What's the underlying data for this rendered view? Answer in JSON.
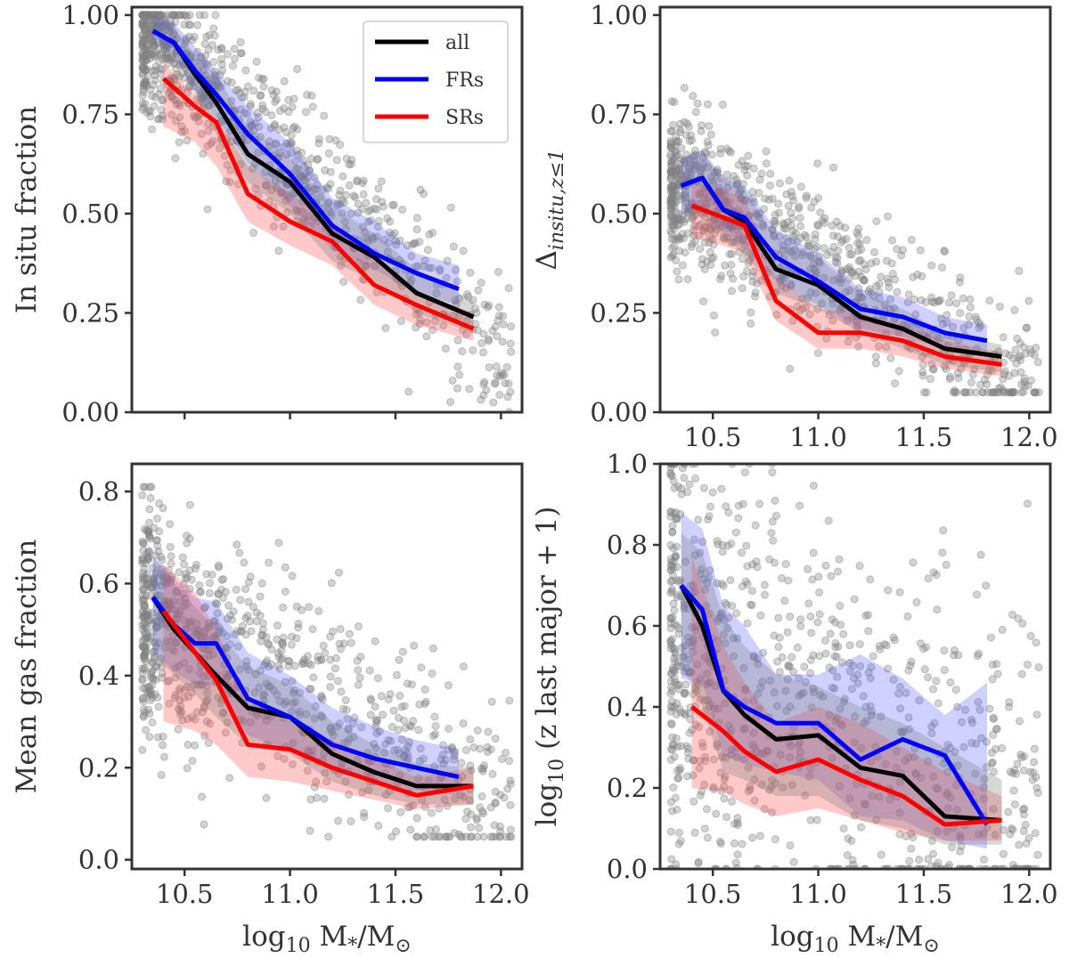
{
  "colors": {
    "all": "#000000",
    "FRs": "#0000ff",
    "SRs": "#ff0000",
    "scatter": "#808080",
    "axis": "#333333"
  },
  "chart_data": [
    {
      "type": "line",
      "panel": "top-left",
      "xlabel": "log10 M*/M⊙",
      "ylabel": "In situ fraction",
      "xlim": [
        10.25,
        12.1
      ],
      "ylim": [
        0.0,
        1.02
      ],
      "xticks": [
        10.5,
        11.0,
        11.5,
        12.0
      ],
      "xtick_labels": [
        "",
        "",
        "",
        ""
      ],
      "yticks": [
        0.0,
        0.25,
        0.5,
        0.75,
        1.0
      ],
      "ytick_labels": [
        "0.00",
        "0.25",
        "0.50",
        "0.75",
        "1.00"
      ],
      "legend": {
        "location": "upper-right",
        "entries": [
          "all",
          "FRs",
          "SRs"
        ]
      },
      "scatter_model": {
        "y0": 0.96,
        "slope": -0.47,
        "noise": 0.09,
        "ymin": 0.0,
        "ymax": 1.0
      },
      "series": [
        {
          "name": "all",
          "x": [
            10.35,
            10.45,
            10.55,
            10.65,
            10.8,
            11.0,
            11.2,
            11.4,
            11.6,
            11.87
          ],
          "values": [
            0.96,
            0.93,
            0.85,
            0.78,
            0.65,
            0.58,
            0.45,
            0.39,
            0.3,
            0.24
          ],
          "band": [
            [
              0.93,
              1.0
            ],
            [
              0.9,
              0.97
            ],
            [
              0.8,
              0.9
            ],
            [
              0.7,
              0.85
            ],
            [
              0.58,
              0.72
            ],
            [
              0.5,
              0.64
            ],
            [
              0.38,
              0.52
            ],
            [
              0.33,
              0.45
            ],
            [
              0.25,
              0.36
            ],
            [
              0.2,
              0.28
            ]
          ]
        },
        {
          "name": "FRs",
          "x": [
            10.35,
            10.45,
            10.55,
            10.65,
            10.8,
            11.0,
            11.2,
            11.4,
            11.6,
            11.8
          ],
          "values": [
            0.96,
            0.93,
            0.86,
            0.8,
            0.7,
            0.6,
            0.47,
            0.4,
            0.35,
            0.31
          ],
          "band": [
            [
              0.93,
              1.0
            ],
            [
              0.9,
              0.98
            ],
            [
              0.81,
              0.92
            ],
            [
              0.74,
              0.86
            ],
            [
              0.63,
              0.77
            ],
            [
              0.52,
              0.68
            ],
            [
              0.41,
              0.54
            ],
            [
              0.36,
              0.48
            ],
            [
              0.3,
              0.4
            ],
            [
              0.27,
              0.37
            ]
          ]
        },
        {
          "name": "SRs",
          "x": [
            10.4,
            10.55,
            10.65,
            10.8,
            11.0,
            11.2,
            11.4,
            11.6,
            11.87
          ],
          "values": [
            0.84,
            0.77,
            0.73,
            0.55,
            0.48,
            0.43,
            0.32,
            0.27,
            0.21
          ],
          "band": [
            [
              0.72,
              0.88
            ],
            [
              0.68,
              0.8
            ],
            [
              0.62,
              0.74
            ],
            [
              0.48,
              0.62
            ],
            [
              0.42,
              0.55
            ],
            [
              0.37,
              0.48
            ],
            [
              0.27,
              0.38
            ],
            [
              0.22,
              0.3
            ],
            [
              0.18,
              0.25
            ]
          ]
        }
      ]
    },
    {
      "type": "line",
      "panel": "top-right",
      "xlabel": "log10 M*/M⊙",
      "ylabel": "Δinsitu,z≤1",
      "xlim": [
        10.25,
        12.1
      ],
      "ylim": [
        0.0,
        1.02
      ],
      "xticks": [
        10.5,
        11.0,
        11.5,
        12.0
      ],
      "xtick_labels": [
        "10.5",
        "11.0",
        "11.5",
        "12.0"
      ],
      "yticks": [
        0.0,
        0.25,
        0.5,
        0.75,
        1.0
      ],
      "ytick_labels": [
        "0.00",
        "0.25",
        "0.50",
        "0.75",
        "1.00"
      ],
      "scatter_model": {
        "y0": 0.58,
        "slope": -0.3,
        "noise": 0.1,
        "ymin": 0.05,
        "ymax": 0.82
      },
      "series": [
        {
          "name": "all",
          "x": [
            10.35,
            10.45,
            10.55,
            10.65,
            10.8,
            11.0,
            11.2,
            11.4,
            11.6,
            11.87
          ],
          "values": [
            0.57,
            0.59,
            0.51,
            0.48,
            0.36,
            0.32,
            0.24,
            0.21,
            0.16,
            0.14
          ],
          "band": [
            [
              0.5,
              0.64
            ],
            [
              0.5,
              0.66
            ],
            [
              0.44,
              0.58
            ],
            [
              0.4,
              0.56
            ],
            [
              0.3,
              0.44
            ],
            [
              0.26,
              0.39
            ],
            [
              0.2,
              0.3
            ],
            [
              0.16,
              0.26
            ],
            [
              0.12,
              0.2
            ],
            [
              0.1,
              0.17
            ]
          ]
        },
        {
          "name": "FRs",
          "x": [
            10.35,
            10.45,
            10.55,
            10.65,
            10.8,
            11.0,
            11.2,
            11.4,
            11.6,
            11.8
          ],
          "values": [
            0.57,
            0.59,
            0.51,
            0.49,
            0.39,
            0.33,
            0.26,
            0.24,
            0.2,
            0.18
          ],
          "band": [
            [
              0.5,
              0.64
            ],
            [
              0.52,
              0.66
            ],
            [
              0.45,
              0.59
            ],
            [
              0.42,
              0.57
            ],
            [
              0.33,
              0.46
            ],
            [
              0.27,
              0.4
            ],
            [
              0.21,
              0.31
            ],
            [
              0.19,
              0.29
            ],
            [
              0.16,
              0.24
            ],
            [
              0.14,
              0.22
            ]
          ]
        },
        {
          "name": "SRs",
          "x": [
            10.4,
            10.55,
            10.65,
            10.8,
            11.0,
            11.2,
            11.4,
            11.6,
            11.87
          ],
          "values": [
            0.52,
            0.49,
            0.47,
            0.28,
            0.2,
            0.2,
            0.18,
            0.14,
            0.12
          ],
          "band": [
            [
              0.44,
              0.58
            ],
            [
              0.42,
              0.56
            ],
            [
              0.4,
              0.54
            ],
            [
              0.23,
              0.34
            ],
            [
              0.16,
              0.26
            ],
            [
              0.16,
              0.25
            ],
            [
              0.14,
              0.22
            ],
            [
              0.11,
              0.18
            ],
            [
              0.09,
              0.15
            ]
          ]
        }
      ]
    },
    {
      "type": "line",
      "panel": "bottom-left",
      "xlabel": "log10 M*/M⊙",
      "ylabel": "Mean gas fraction",
      "xlim": [
        10.25,
        12.1
      ],
      "ylim": [
        -0.02,
        0.86
      ],
      "xticks": [
        10.5,
        11.0,
        11.5,
        12.0
      ],
      "xtick_labels": [
        "10.5",
        "11.0",
        "11.5",
        "12.0"
      ],
      "yticks": [
        0.0,
        0.2,
        0.4,
        0.6,
        0.8
      ],
      "ytick_labels": [
        "0.0",
        "0.2",
        "0.4",
        "0.6",
        "0.8"
      ],
      "scatter_model": {
        "y0": 0.55,
        "slope": -0.26,
        "noise": 0.12,
        "ymin": 0.05,
        "ymax": 0.81
      },
      "series": [
        {
          "name": "all",
          "x": [
            10.35,
            10.45,
            10.55,
            10.65,
            10.8,
            11.0,
            11.2,
            11.4,
            11.6,
            11.87
          ],
          "values": [
            0.57,
            0.5,
            0.45,
            0.4,
            0.33,
            0.31,
            0.23,
            0.19,
            0.16,
            0.16
          ],
          "band": [
            [
              0.45,
              0.66
            ],
            [
              0.4,
              0.6
            ],
            [
              0.36,
              0.55
            ],
            [
              0.31,
              0.5
            ],
            [
              0.25,
              0.42
            ],
            [
              0.23,
              0.38
            ],
            [
              0.17,
              0.3
            ],
            [
              0.14,
              0.25
            ],
            [
              0.12,
              0.21
            ],
            [
              0.12,
              0.2
            ]
          ]
        },
        {
          "name": "FRs",
          "x": [
            10.35,
            10.45,
            10.55,
            10.65,
            10.8,
            11.0,
            11.2,
            11.4,
            11.6,
            11.8
          ],
          "values": [
            0.57,
            0.51,
            0.47,
            0.47,
            0.35,
            0.31,
            0.25,
            0.22,
            0.2,
            0.18
          ],
          "band": [
            [
              0.45,
              0.66
            ],
            [
              0.41,
              0.61
            ],
            [
              0.38,
              0.57
            ],
            [
              0.38,
              0.56
            ],
            [
              0.27,
              0.45
            ],
            [
              0.24,
              0.4
            ],
            [
              0.19,
              0.33
            ],
            [
              0.17,
              0.29
            ],
            [
              0.15,
              0.26
            ],
            [
              0.14,
              0.24
            ]
          ]
        },
        {
          "name": "SRs",
          "x": [
            10.4,
            10.55,
            10.65,
            10.8,
            11.0,
            11.2,
            11.4,
            11.6,
            11.87
          ],
          "values": [
            0.54,
            0.45,
            0.39,
            0.25,
            0.24,
            0.2,
            0.17,
            0.14,
            0.16
          ],
          "band": [
            [
              0.3,
              0.64
            ],
            [
              0.28,
              0.58
            ],
            [
              0.25,
              0.5
            ],
            [
              0.18,
              0.34
            ],
            [
              0.17,
              0.31
            ],
            [
              0.15,
              0.26
            ],
            [
              0.13,
              0.22
            ],
            [
              0.11,
              0.18
            ],
            [
              0.12,
              0.2
            ]
          ]
        }
      ]
    },
    {
      "type": "line",
      "panel": "bottom-right",
      "xlabel": "log10 M*/M⊙",
      "ylabel": "log10 (z last major + 1)",
      "xlim": [
        10.25,
        12.1
      ],
      "ylim": [
        0.0,
        1.0
      ],
      "xticks": [
        10.5,
        11.0,
        11.5,
        12.0
      ],
      "xtick_labels": [
        "10.5",
        "11.0",
        "11.5",
        "12.0"
      ],
      "yticks": [
        0.0,
        0.2,
        0.4,
        0.6,
        0.8,
        1.0
      ],
      "ytick_labels": [
        "0.0",
        "0.2",
        "0.4",
        "0.6",
        "0.8",
        "1.0"
      ],
      "scatter_model": {
        "y0": 0.55,
        "slope": -0.25,
        "noise": 0.25,
        "ymin": 0.0,
        "ymax": 1.0
      },
      "series": [
        {
          "name": "all",
          "x": [
            10.35,
            10.45,
            10.55,
            10.65,
            10.8,
            11.0,
            11.2,
            11.4,
            11.6,
            11.87
          ],
          "values": [
            0.7,
            0.6,
            0.44,
            0.38,
            0.32,
            0.33,
            0.25,
            0.23,
            0.13,
            0.12
          ],
          "band": [
            [
              0.5,
              0.83
            ],
            [
              0.4,
              0.78
            ],
            [
              0.24,
              0.62
            ],
            [
              0.22,
              0.55
            ],
            [
              0.18,
              0.48
            ],
            [
              0.18,
              0.45
            ],
            [
              0.12,
              0.4
            ],
            [
              0.1,
              0.36
            ],
            [
              0.06,
              0.3
            ],
            [
              0.06,
              0.22
            ]
          ]
        },
        {
          "name": "FRs",
          "x": [
            10.35,
            10.45,
            10.55,
            10.65,
            10.8,
            11.0,
            11.2,
            11.4,
            11.6,
            11.8
          ],
          "values": [
            0.7,
            0.64,
            0.44,
            0.4,
            0.36,
            0.36,
            0.27,
            0.32,
            0.28,
            0.11
          ],
          "band": [
            [
              0.47,
              0.88
            ],
            [
              0.46,
              0.84
            ],
            [
              0.28,
              0.65
            ],
            [
              0.26,
              0.6
            ],
            [
              0.24,
              0.48
            ],
            [
              0.22,
              0.48
            ],
            [
              0.13,
              0.53
            ],
            [
              0.12,
              0.47
            ],
            [
              0.07,
              0.38
            ],
            [
              0.05,
              0.46
            ]
          ]
        },
        {
          "name": "SRs",
          "x": [
            10.4,
            10.55,
            10.65,
            10.8,
            11.0,
            11.2,
            11.4,
            11.6,
            11.87
          ],
          "values": [
            0.4,
            0.34,
            0.29,
            0.24,
            0.27,
            0.22,
            0.18,
            0.11,
            0.12
          ],
          "band": [
            [
              0.2,
              0.77
            ],
            [
              0.19,
              0.55
            ],
            [
              0.16,
              0.46
            ],
            [
              0.13,
              0.36
            ],
            [
              0.15,
              0.4
            ],
            [
              0.12,
              0.36
            ],
            [
              0.09,
              0.3
            ],
            [
              0.07,
              0.24
            ],
            [
              0.07,
              0.18
            ]
          ]
        }
      ]
    }
  ]
}
